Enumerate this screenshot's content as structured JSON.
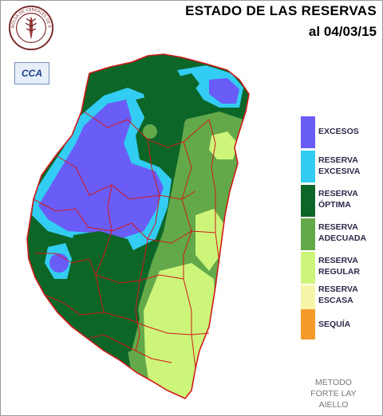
{
  "title": {
    "line1": "ESTADO DE LAS RESERVAS",
    "line2": "al 04/03/15"
  },
  "logos": {
    "seal_text": "BOLSA DE CEREALES DE ENTRE RIOS",
    "cca_text": "CCA"
  },
  "legend": [
    {
      "label_1": "EXCESOS",
      "label_2": "",
      "color": "#6a5cf6"
    },
    {
      "label_1": "RESERVA",
      "label_2": "EXCESIVA",
      "color": "#33ccf2"
    },
    {
      "label_1": "RESERVA",
      "label_2": "ÓPTIMA",
      "color": "#0c6628"
    },
    {
      "label_1": "RESERVA",
      "label_2": "ADECUADA",
      "color": "#63a94a"
    },
    {
      "label_1": "RESERVA",
      "label_2": "REGULAR",
      "color": "#cdf57a"
    },
    {
      "label_1": "RESERVA",
      "label_2": "ESCASA",
      "color": "#f7f5a8"
    },
    {
      "label_1": "SEQUÍA",
      "label_2": "",
      "color": "#f59a2b"
    }
  ],
  "method": {
    "line1": "METODO",
    "line2": "FORTE LAY",
    "line3": "AIELLO"
  },
  "colors": {
    "department_borders": "#d01a1a",
    "province_border": "#d01a1a"
  }
}
